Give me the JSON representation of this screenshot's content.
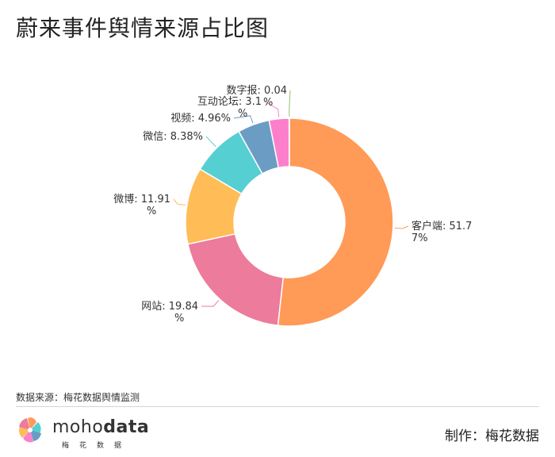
{
  "title": "蔚来事件舆情来源占比图",
  "source_note": "数据来源：梅花数据舆情监测",
  "brand": {
    "name_light": "moho",
    "name_bold": "data",
    "subtitle": "梅花数据"
  },
  "maker": "制作：梅花数据",
  "chart_data": {
    "type": "pie",
    "variant": "donut",
    "series": [
      {
        "label": "客户端",
        "value": 51.77,
        "color": "#ff9a57"
      },
      {
        "label": "网站",
        "value": 19.84,
        "color": "#ed7b9b"
      },
      {
        "label": "微博",
        "value": 11.91,
        "color": "#ffbc57"
      },
      {
        "label": "微信",
        "value": 8.38,
        "color": "#56cfd3"
      },
      {
        "label": "视频",
        "value": 4.96,
        "color": "#6b9cc4"
      },
      {
        "label": "互动论坛",
        "value": 3.1,
        "color": "#fd7fcc"
      },
      {
        "label": "数字报",
        "value": 0.04,
        "color": "#9dbf6c"
      }
    ],
    "labels": [
      {
        "line1": "客户端: 51.7",
        "line2": "7%"
      },
      {
        "line1": "网站: 19.84",
        "line2": "%"
      },
      {
        "line1": "微博: 11.91",
        "line2": "%"
      },
      {
        "line1": "微信: 8.38%",
        "line2": ""
      },
      {
        "line1": "视频: 4.96%",
        "line2": ""
      },
      {
        "line1": "互动论坛: 3.1",
        "line2": "%"
      },
      {
        "line1": "数字报: 0.04",
        "line2": "%"
      }
    ]
  }
}
